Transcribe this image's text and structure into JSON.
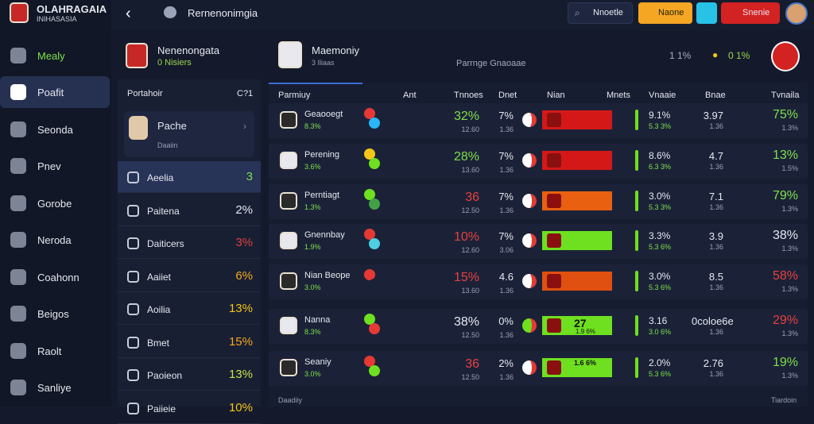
{
  "brand": {
    "title": "OLAHRAGAIA",
    "subtitle": "INIHASASIA"
  },
  "nav": [
    "Mealy",
    "Poafit",
    "Seonda",
    "Pnev",
    "Gorobe",
    "Neroda",
    "Coahonn",
    "Beigos",
    "Raolt",
    "Sanliye"
  ],
  "topbar": {
    "title": "Rernenonimgia",
    "search": "Nnoetle",
    "button_yellow": "Naone",
    "button_red": "Snenie"
  },
  "side_panel": {
    "team": "Nenenongata",
    "team_sub": "0 Nisiers",
    "list_header": "Portahoir",
    "list_header_right": "C?1",
    "feature": "Pache",
    "feature_sub": "Daaiin",
    "items": [
      {
        "name": "Aeelia",
        "value": "3"
      },
      {
        "name": "Paitena",
        "value": "2%"
      },
      {
        "name": "Daiticers",
        "value": "3%"
      },
      {
        "name": "Aaiiet",
        "value": "6%"
      },
      {
        "name": "Aoilia",
        "value": "13%"
      },
      {
        "name": "Bmet",
        "value": "15%"
      },
      {
        "name": "Paoieon",
        "value": "13%"
      },
      {
        "name": "Paiieie",
        "value": "10%"
      }
    ]
  },
  "main": {
    "team": "Maemoniy",
    "team_sub": "3 Iliaas",
    "center": "Parrnge Gnaoaae",
    "stat_a": "1 1%",
    "stat_b": "0 1%",
    "columns": [
      "Parmiuy",
      "Ant",
      "Tnnoes",
      "Dnet",
      "Nian",
      "Mnets",
      "Vnaaie",
      "Bnae",
      "Tvnaila"
    ],
    "rows": [
      {
        "name": "Geaooegt",
        "sub": "8.3%",
        "pct": "32%",
        "pct_sub": "12.60",
        "dnet": "7%",
        "dnet_sub": "1.36",
        "mnets": "9.1%",
        "mnets_sub": "5.3 3%",
        "bnae": "3.97",
        "bnae_sub": "1.36",
        "last": "75%",
        "last_sub": "1.3%"
      },
      {
        "name": "Perening",
        "sub": "3.6%",
        "pct": "28%",
        "pct_sub": "13.60",
        "dnet": "7%",
        "dnet_sub": "1.36",
        "mnets": "8.6%",
        "mnets_sub": "6.3 3%",
        "bnae": "4.7",
        "bnae_sub": "1.36",
        "last": "13%",
        "last_sub": "1.5%"
      },
      {
        "name": "Perntiagt",
        "sub": "1.3%",
        "pct": "36",
        "pct_sub": "12.50",
        "dnet": "7%",
        "dnet_sub": "1.36",
        "mnets": "3.0%",
        "mnets_sub": "5.3 3%",
        "bnae": "7.1",
        "bnae_sub": "1.36",
        "last": "79%",
        "last_sub": "1.3%"
      },
      {
        "name": "Gnennbay",
        "sub": "1.9%",
        "pct": "10%",
        "pct_sub": "12.60",
        "dnet": "7%",
        "dnet_sub": "3.06",
        "mnets": "3.3%",
        "mnets_sub": "5.3 6%",
        "bnae": "3.9",
        "bnae_sub": "1.36",
        "last": "38%",
        "last_sub": "1.3%"
      },
      {
        "name": "Nian Beope",
        "sub": "3.0%",
        "pct": "15%",
        "pct_sub": "13.60",
        "dnet": "4.6",
        "dnet_sub": "1.36",
        "mnets": "3.0%",
        "mnets_sub": "5.3 6%",
        "bnae": "8.5",
        "bnae_sub": "1.36",
        "last": "58%",
        "last_sub": "1.3%"
      }
    ],
    "rows2": [
      {
        "name": "Nanna",
        "sub": "8.3%",
        "pct": "38%",
        "pct_sub": "12.50",
        "dnet": "0%",
        "dnet_sub": "1.36",
        "bar": "27",
        "bar_sub": "1.9 6%",
        "mnets": "3.16",
        "mnets_sub": "3.0 6%",
        "bnae": "0coloe6e",
        "bnae_sub": "1.36",
        "last": "29%",
        "last_sub": "1.3%"
      },
      {
        "name": "Seaniy",
        "sub": "3.0%",
        "pct": "36",
        "pct_sub": "12.50",
        "dnet": "2%",
        "dnet_sub": "1.36",
        "bar": "1.6 6%",
        "bar_sub": "",
        "mnets": "2.0%",
        "mnets_sub": "5.3 6%",
        "bnae": "2.76",
        "bnae_sub": "1.36",
        "last": "19%",
        "last_sub": "1.3%"
      }
    ],
    "footer_left": "Daadiiy",
    "footer_right": "Tiardoin"
  }
}
